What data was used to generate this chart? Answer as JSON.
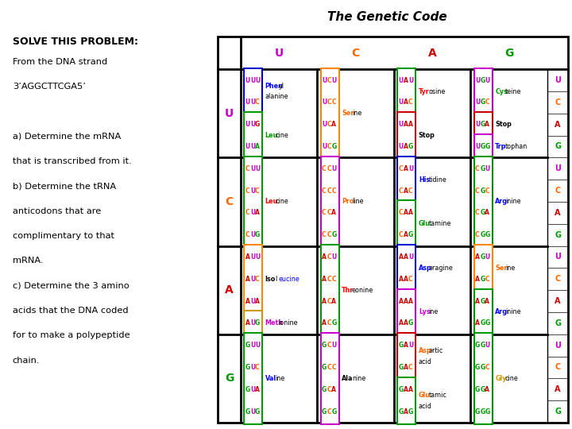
{
  "title": "The Genetic Code",
  "problem_title": "SOLVE THIS PROBLEM:",
  "problem_lines": [
    "From the DNA strand",
    "3’AGGCTTCGA5’",
    "",
    "a) Determine the mRNA",
    "that is transcribed from it.",
    "b) Determine the tRNA",
    "anticodons that are",
    "complimentary to that",
    "mRNA.",
    "c) Determine the 3 amino",
    "acids that the DNA coded",
    "for to make a polypeptide",
    "chain."
  ],
  "col_headers": [
    "U",
    "C",
    "A",
    "G"
  ],
  "col_header_colors": [
    "#cc00cc",
    "#ff6600",
    "#cc0000",
    "#009900"
  ],
  "row_headers": [
    "U",
    "C",
    "A",
    "G"
  ],
  "row_header_colors": [
    "#cc00cc",
    "#ff6600",
    "#cc0000",
    "#009900"
  ],
  "right_label_colors": [
    "#cc00cc",
    "#ff6600",
    "#cc0000",
    "#009900"
  ],
  "box_color_map": {
    "blue": "#0000cc",
    "green": "#009900",
    "orange": "#ff8800",
    "red": "#cc0000",
    "purple": "#cc00cc",
    "yellow": "#cc9900"
  },
  "cells": [
    [
      {
        "groups": [
          {
            "codons": [
              "UUU",
              "UUC"
            ],
            "box_color": "blue",
            "amino_parts": [
              "Phen",
              "yl"
            ],
            "amino_colors": [
              "#0000ff",
              "#000000"
            ],
            "amino2_parts": [
              "alanine"
            ],
            "amino2_colors": [
              "#000000"
            ]
          },
          {
            "codons": [
              "UUG",
              "UUA"
            ],
            "box_color": "green",
            "amino_parts": [
              "Leu",
              "cine"
            ],
            "amino_colors": [
              "#009900",
              "#000000"
            ],
            "amino2_parts": [],
            "amino2_colors": []
          }
        ]
      },
      {
        "groups": [
          {
            "codons": [
              "UCU",
              "UCC",
              "UCA",
              "UCG"
            ],
            "box_color": "orange",
            "amino_parts": [
              "Ser",
              "ine"
            ],
            "amino_colors": [
              "#ff6600",
              "#000000"
            ],
            "amino2_parts": [],
            "amino2_colors": []
          }
        ]
      },
      {
        "groups": [
          {
            "codons": [
              "UAU",
              "UAC"
            ],
            "box_color": "green",
            "amino_parts": [
              "Tyr",
              "osine"
            ],
            "amino_colors": [
              "#ff0000",
              "#000000"
            ],
            "amino2_parts": [],
            "amino2_colors": []
          },
          {
            "codons": [
              "UAA",
              "UAG"
            ],
            "box_color": "red",
            "amino_parts": [
              "Stop"
            ],
            "amino_colors": [
              "#000000"
            ],
            "amino2_parts": [],
            "amino2_colors": []
          }
        ]
      },
      {
        "groups": [
          {
            "codons": [
              "UGU",
              "UGC"
            ],
            "box_color": "purple",
            "amino_parts": [
              "Cys",
              "teine"
            ],
            "amino_colors": [
              "#009900",
              "#000000"
            ],
            "amino2_parts": [],
            "amino2_colors": []
          },
          {
            "codons": [
              "UGA"
            ],
            "box_color": "red",
            "amino_parts": [
              "Stop"
            ],
            "amino_colors": [
              "#000000"
            ],
            "amino2_parts": [],
            "amino2_colors": []
          },
          {
            "codons": [
              "UGG"
            ],
            "box_color": "purple",
            "amino_parts": [
              "Trp",
              "tophan"
            ],
            "amino_colors": [
              "#0000ff",
              "#000000"
            ],
            "amino2_parts": [],
            "amino2_colors": []
          }
        ]
      }
    ],
    [
      {
        "groups": [
          {
            "codons": [
              "CUU",
              "CUC",
              "CUA",
              "CUG"
            ],
            "box_color": "green",
            "amino_parts": [
              "Leu",
              "cine"
            ],
            "amino_colors": [
              "#ff0000",
              "#000000"
            ],
            "amino2_parts": [],
            "amino2_colors": []
          }
        ]
      },
      {
        "groups": [
          {
            "codons": [
              "CCU",
              "CCC",
              "CCA",
              "CCG"
            ],
            "box_color": "purple",
            "amino_parts": [
              "Pro",
              "line"
            ],
            "amino_colors": [
              "#ff6600",
              "#000000"
            ],
            "amino2_parts": [],
            "amino2_colors": []
          }
        ]
      },
      {
        "groups": [
          {
            "codons": [
              "CAU",
              "CAC"
            ],
            "box_color": "blue",
            "amino_parts": [
              "His",
              "tidine"
            ],
            "amino_colors": [
              "#0000ff",
              "#000000"
            ],
            "amino2_parts": [],
            "amino2_colors": []
          },
          {
            "codons": [
              "CAA",
              "CAG"
            ],
            "box_color": "green",
            "amino_parts": [
              "Glu",
              "tamine"
            ],
            "amino_colors": [
              "#009900",
              "#000000"
            ],
            "amino2_parts": [],
            "amino2_colors": []
          }
        ]
      },
      {
        "groups": [
          {
            "codons": [
              "CGU",
              "CGC",
              "CGA",
              "CGG"
            ],
            "box_color": "green",
            "amino_parts": [
              "Arg",
              "inine"
            ],
            "amino_colors": [
              "#0000ff",
              "#000000"
            ],
            "amino2_parts": [],
            "amino2_colors": []
          }
        ]
      }
    ],
    [
      {
        "groups": [
          {
            "codons": [
              "AUU",
              "AUC",
              "AUA"
            ],
            "box_color": "orange",
            "amino_parts": [
              "Iso",
              "l",
              "eucine"
            ],
            "amino_colors": [
              "#000000",
              "#000000",
              "#0000ff"
            ],
            "amino2_parts": [],
            "amino2_colors": []
          },
          {
            "codons": [
              "AUG"
            ],
            "box_color": "yellow",
            "amino_parts": [
              "Meth",
              "ionine"
            ],
            "amino_colors": [
              "#cc00cc",
              "#000000"
            ],
            "amino2_parts": [],
            "amino2_colors": []
          }
        ]
      },
      {
        "groups": [
          {
            "codons": [
              "ACU",
              "ACC",
              "ACA",
              "ACG"
            ],
            "box_color": "green",
            "amino_parts": [
              "Thr",
              "eonine"
            ],
            "amino_colors": [
              "#ff0000",
              "#000000"
            ],
            "amino2_parts": [],
            "amino2_colors": []
          }
        ]
      },
      {
        "groups": [
          {
            "codons": [
              "AAU",
              "AAC"
            ],
            "box_color": "blue",
            "amino_parts": [
              "Asp",
              "aragine"
            ],
            "amino_colors": [
              "#0000ff",
              "#000000"
            ],
            "amino2_parts": [],
            "amino2_colors": []
          },
          {
            "codons": [
              "AAA",
              "AAG"
            ],
            "box_color": "purple",
            "amino_parts": [
              "Lys",
              "ine"
            ],
            "amino_colors": [
              "#cc00cc",
              "#000000"
            ],
            "amino2_parts": [],
            "amino2_colors": []
          }
        ]
      },
      {
        "groups": [
          {
            "codons": [
              "AGU",
              "AGC"
            ],
            "box_color": "orange",
            "amino_parts": [
              "Ser",
              "ine"
            ],
            "amino_colors": [
              "#ff6600",
              "#000000"
            ],
            "amino2_parts": [],
            "amino2_colors": []
          },
          {
            "codons": [
              "AGA",
              "AGG"
            ],
            "box_color": "green",
            "amino_parts": [
              "Arg",
              "inine"
            ],
            "amino_colors": [
              "#0000ff",
              "#000000"
            ],
            "amino2_parts": [],
            "amino2_colors": []
          }
        ]
      }
    ],
    [
      {
        "groups": [
          {
            "codons": [
              "GUU",
              "GUC",
              "GUA",
              "GUG"
            ],
            "box_color": "green",
            "amino_parts": [
              "Val",
              "ine"
            ],
            "amino_colors": [
              "#0000ff",
              "#000000"
            ],
            "amino2_parts": [],
            "amino2_colors": []
          }
        ]
      },
      {
        "groups": [
          {
            "codons": [
              "GCU",
              "GCC",
              "GCA",
              "GCG"
            ],
            "box_color": "purple",
            "amino_parts": [
              "Ala",
              "nine"
            ],
            "amino_colors": [
              "#000000",
              "#000000"
            ],
            "amino2_parts": [],
            "amino2_colors": []
          }
        ]
      },
      {
        "groups": [
          {
            "codons": [
              "GAU",
              "GAC"
            ],
            "box_color": "red",
            "amino_parts": [
              "Asp",
              "artic"
            ],
            "amino_colors": [
              "#ff6600",
              "#000000"
            ],
            "amino2_parts": [
              "acid"
            ],
            "amino2_colors": [
              "#000000"
            ]
          },
          {
            "codons": [
              "GAA",
              "GAG"
            ],
            "box_color": "green",
            "amino_parts": [
              "Glu",
              "tamic"
            ],
            "amino_colors": [
              "#ff6600",
              "#000000"
            ],
            "amino2_parts": [
              "acid"
            ],
            "amino2_colors": [
              "#000000"
            ]
          }
        ]
      },
      {
        "groups": [
          {
            "codons": [
              "GGU",
              "GGC",
              "GGA",
              "GGG"
            ],
            "box_color": "green",
            "amino_parts": [
              "Gly",
              "cine"
            ],
            "amino_colors": [
              "#cc9900",
              "#000000"
            ],
            "amino2_parts": [],
            "amino2_colors": []
          }
        ]
      }
    ]
  ]
}
